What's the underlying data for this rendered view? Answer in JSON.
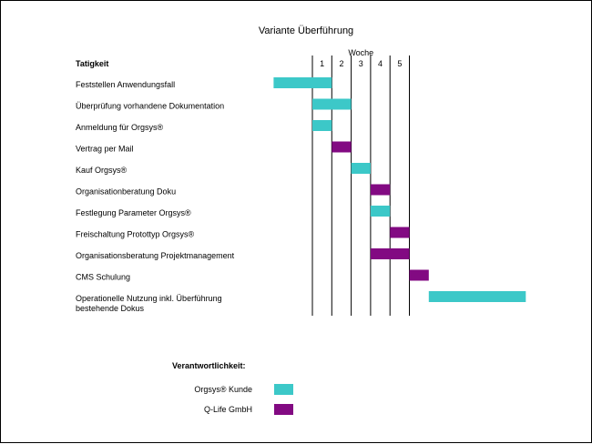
{
  "chart_data": {
    "type": "gantt",
    "title": "Variante Überführung",
    "column_header": "Tatigkeit",
    "week_header": "Woche",
    "weeks": [
      "1",
      "2",
      "3",
      "4",
      "5"
    ],
    "tasks": [
      {
        "label": "Feststellen Anwendungsfall",
        "start": -2,
        "end": 1,
        "owner": "kunde"
      },
      {
        "label": "Überprüfung vorhandene Dokumentation",
        "start": 0,
        "end": 2,
        "owner": "kunde"
      },
      {
        "label": "Anmeldung für Orgsys®",
        "start": 0,
        "end": 1,
        "owner": "kunde"
      },
      {
        "label": "Vertrag per Mail",
        "start": 1,
        "end": 2,
        "owner": "qlife"
      },
      {
        "label": "Kauf Orgsys®",
        "start": 2,
        "end": 3,
        "owner": "kunde"
      },
      {
        "label": "Organisationberatung Doku",
        "start": 3,
        "end": 4,
        "owner": "qlife"
      },
      {
        "label": "Festlegung Parameter Orgsys®",
        "start": 3,
        "end": 4,
        "owner": "kunde"
      },
      {
        "label": "Freischaltung Protottyp Orgsys®",
        "start": 4,
        "end": 5,
        "owner": "qlife"
      },
      {
        "label": "Organisationsberatung Projektmanagement",
        "start": 3,
        "end": 5,
        "owner": "qlife"
      },
      {
        "label": "CMS Schulung",
        "start": 5,
        "end": 6,
        "owner": "qlife"
      },
      {
        "label": "Operationelle Nutzung inkl. Überführung\nbestehende Dokus",
        "start": 6,
        "end": 11,
        "owner": "kunde"
      }
    ],
    "legend": {
      "title": "Verantwortlichkeit:",
      "items": [
        {
          "key": "kunde",
          "label": "Orgsys® Kunde",
          "color": "#3cc8c8"
        },
        {
          "key": "qlife",
          "label": "Q-Life GmbH",
          "color": "#820a82"
        }
      ]
    }
  }
}
